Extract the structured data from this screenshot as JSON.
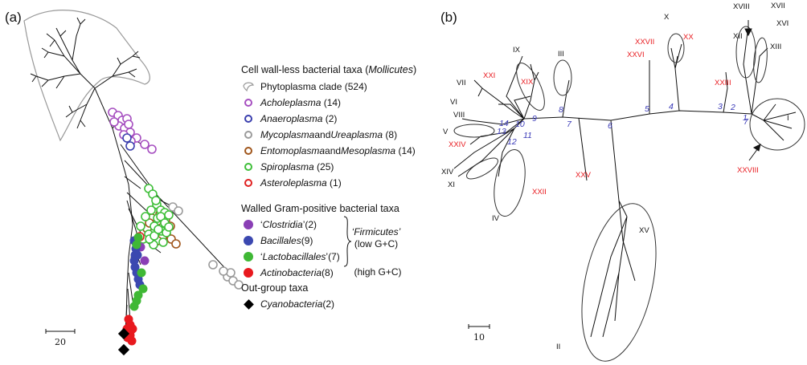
{
  "panels": {
    "a_label": "(a)",
    "b_label": "(b)"
  },
  "legend": {
    "mollicutes_heading_prefix": "Cell wall-less bacterial taxa (",
    "mollicutes_heading_italic": "Mollicutes",
    "mollicutes_heading_suffix": ")",
    "phytoplasma_label": "Phytoplasma clade (524)",
    "items": [
      {
        "name": "Acholeplasma",
        "count": "(14)",
        "color": "#a64fc0"
      },
      {
        "name": "Anaeroplasma",
        "count": "(2)",
        "color": "#3a3fae"
      },
      {
        "name": "Mycoplasma",
        "conj": " and ",
        "name2": "Ureaplasma",
        "count": "(8)",
        "color": "#9b9b9b"
      },
      {
        "name": "Entomoplasma",
        "conj": " and ",
        "name2": "Mesoplasma",
        "count": "(14)",
        "color": "#a0561c"
      },
      {
        "name": "Spiroplasma",
        "count": "(25)",
        "color": "#3fbf3a"
      },
      {
        "name": "Asteroleplasma",
        "count": "(1)",
        "color": "#e02020"
      }
    ],
    "walled_heading": "Walled Gram-positive bacterial taxa",
    "walled_items": [
      {
        "q1": "‘",
        "name": "Clostridia",
        "q2": "’",
        "count": " (2)",
        "color": "#8a3fb5"
      },
      {
        "q1": "",
        "name": "Bacillales",
        "q2": "",
        "count": " (9)",
        "color": "#3b48b0"
      },
      {
        "q1": "‘",
        "name": "Lactobacillales",
        "q2": "’",
        "count": " (7)",
        "color": "#3fb835"
      },
      {
        "q1": "",
        "name": "Actinobacteria",
        "q2": "",
        "count": "  (8)",
        "color": "#e8191e"
      }
    ],
    "firmicutes_line1": "‘Firmicutes’",
    "firmicutes_line2": "(low G+C)",
    "high_gc": "(high G+C)",
    "outgroup_heading": "Out-group taxa",
    "outgroup_name": "Cyanobacteria",
    "outgroup_count": " (2)"
  },
  "scale_a": "20",
  "scale_b": "10",
  "tree_b": {
    "black_labels": [
      "I",
      "II",
      "III",
      "IV",
      "V",
      "VI",
      "VII",
      "VIII",
      "IX",
      "X",
      "XI",
      "XII",
      "XIII",
      "XIV",
      "XV",
      "XVI",
      "XVII",
      "XVIII"
    ],
    "red_labels": [
      "XIX",
      "XX",
      "XXI",
      "XXII",
      "XXIII",
      "XXIV",
      "XXV",
      "XXVI",
      "XXVII",
      "XXVIII"
    ],
    "blue_labels": [
      "1",
      "2",
      "3",
      "4",
      "5",
      "6",
      "7",
      "7",
      "8",
      "9",
      "10",
      "11",
      "12",
      "13",
      "14"
    ],
    "colors": {
      "black": "#111111",
      "red": "#e8191e",
      "blue": "#3a3ab8"
    }
  }
}
